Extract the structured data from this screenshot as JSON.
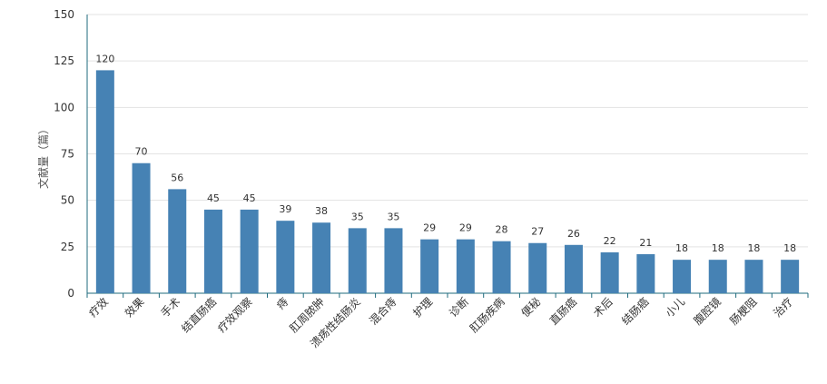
{
  "chart_data": {
    "type": "bar",
    "title": "",
    "xlabel": "",
    "ylabel": "文献量（篇）",
    "ylim": [
      0,
      150
    ],
    "yticks": [
      0,
      25,
      50,
      75,
      100,
      125,
      150
    ],
    "grid": true,
    "legend": "none",
    "bar_color": "#4682B4",
    "axis_color": "#1f6b7d",
    "grid_color": "#e3e3e3",
    "categories": [
      "疗效",
      "效果",
      "手术",
      "结直肠癌",
      "疗效观察",
      "痔",
      "肛周脓肿",
      "溃疡性结肠炎",
      "混合痔",
      "护理",
      "诊断",
      "肛肠疾病",
      "便秘",
      "直肠癌",
      "术后",
      "结肠癌",
      "小儿",
      "腹腔镜",
      "肠梗阻",
      "治疗"
    ],
    "values": [
      120,
      70,
      56,
      45,
      45,
      39,
      38,
      35,
      35,
      29,
      29,
      28,
      27,
      26,
      22,
      21,
      18,
      18,
      18,
      18
    ]
  }
}
